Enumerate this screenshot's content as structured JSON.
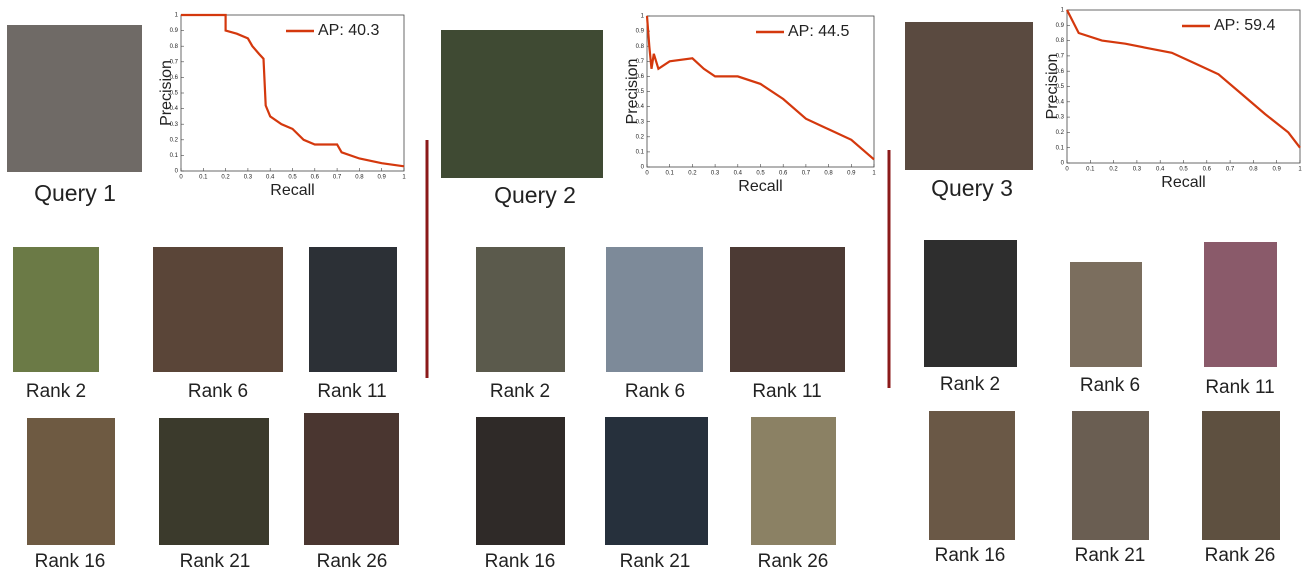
{
  "chart_data": [
    {
      "type": "line",
      "xlabel": "Recall",
      "ylabel": "Precision",
      "x": [
        0,
        0.2,
        0.2,
        0.25,
        0.3,
        0.32,
        0.35,
        0.37,
        0.38,
        0.4,
        0.45,
        0.5,
        0.55,
        0.6,
        0.7,
        0.72,
        0.8,
        0.9,
        1
      ],
      "series": [
        {
          "name": "AP: 40.3",
          "color": "#d4380d",
          "values": [
            1,
            1,
            0.9,
            0.88,
            0.85,
            0.8,
            0.75,
            0.72,
            0.42,
            0.35,
            0.3,
            0.27,
            0.2,
            0.17,
            0.17,
            0.12,
            0.08,
            0.05,
            0.03
          ]
        }
      ],
      "xlim": [
        0,
        1
      ],
      "ylim": [
        0,
        1
      ],
      "xticks": [
        0,
        0.1,
        0.2,
        0.3,
        0.4,
        0.5,
        0.6,
        0.7,
        0.8,
        0.9,
        1
      ],
      "yticks": [
        0,
        0.1,
        0.2,
        0.3,
        0.4,
        0.5,
        0.6,
        0.7,
        0.8,
        0.9,
        1
      ],
      "legend": "upper right"
    },
    {
      "type": "line",
      "xlabel": "Recall",
      "ylabel": "Precision",
      "x": [
        0,
        0.01,
        0.02,
        0.03,
        0.05,
        0.1,
        0.2,
        0.25,
        0.3,
        0.4,
        0.5,
        0.6,
        0.7,
        0.8,
        0.9,
        1
      ],
      "series": [
        {
          "name": "AP: 44.5",
          "color": "#d4380d",
          "values": [
            1,
            0.8,
            0.65,
            0.75,
            0.65,
            0.7,
            0.72,
            0.65,
            0.6,
            0.6,
            0.55,
            0.45,
            0.32,
            0.25,
            0.18,
            0.05
          ]
        }
      ],
      "xlim": [
        0,
        1
      ],
      "ylim": [
        0,
        1
      ],
      "xticks": [
        0,
        0.1,
        0.2,
        0.3,
        0.4,
        0.5,
        0.6,
        0.7,
        0.8,
        0.9,
        1
      ],
      "yticks": [
        0,
        0.1,
        0.2,
        0.3,
        0.4,
        0.5,
        0.6,
        0.7,
        0.8,
        0.9,
        1
      ],
      "legend": "upper right"
    },
    {
      "type": "line",
      "xlabel": "Recall",
      "ylabel": "Precision",
      "x": [
        0,
        0.05,
        0.15,
        0.25,
        0.35,
        0.45,
        0.55,
        0.65,
        0.75,
        0.85,
        0.95,
        1
      ],
      "series": [
        {
          "name": "AP: 59.4",
          "color": "#d4380d",
          "values": [
            1,
            0.85,
            0.8,
            0.78,
            0.75,
            0.72,
            0.65,
            0.58,
            0.45,
            0.32,
            0.2,
            0.1
          ]
        }
      ],
      "xlim": [
        0,
        1
      ],
      "ylim": [
        0,
        1
      ],
      "xticks": [
        0,
        0.1,
        0.2,
        0.3,
        0.4,
        0.5,
        0.6,
        0.7,
        0.8,
        0.9,
        1
      ],
      "yticks": [
        0,
        0.1,
        0.2,
        0.3,
        0.4,
        0.5,
        0.6,
        0.7,
        0.8,
        0.9,
        1
      ],
      "legend": "upper right"
    }
  ],
  "panels": [
    {
      "query": "Query 1",
      "ranks": [
        "Rank 2",
        "Rank 6",
        "Rank 11",
        "Rank 16",
        "Rank 21",
        "Rank 26"
      ]
    },
    {
      "query": "Query 2",
      "ranks": [
        "Rank 2",
        "Rank 6",
        "Rank 11",
        "Rank 16",
        "Rank 21",
        "Rank 26"
      ]
    },
    {
      "query": "Query 3",
      "ranks": [
        "Rank 2",
        "Rank 6",
        "Rank 11",
        "Rank 16",
        "Rank 21",
        "Rank 26"
      ]
    }
  ]
}
